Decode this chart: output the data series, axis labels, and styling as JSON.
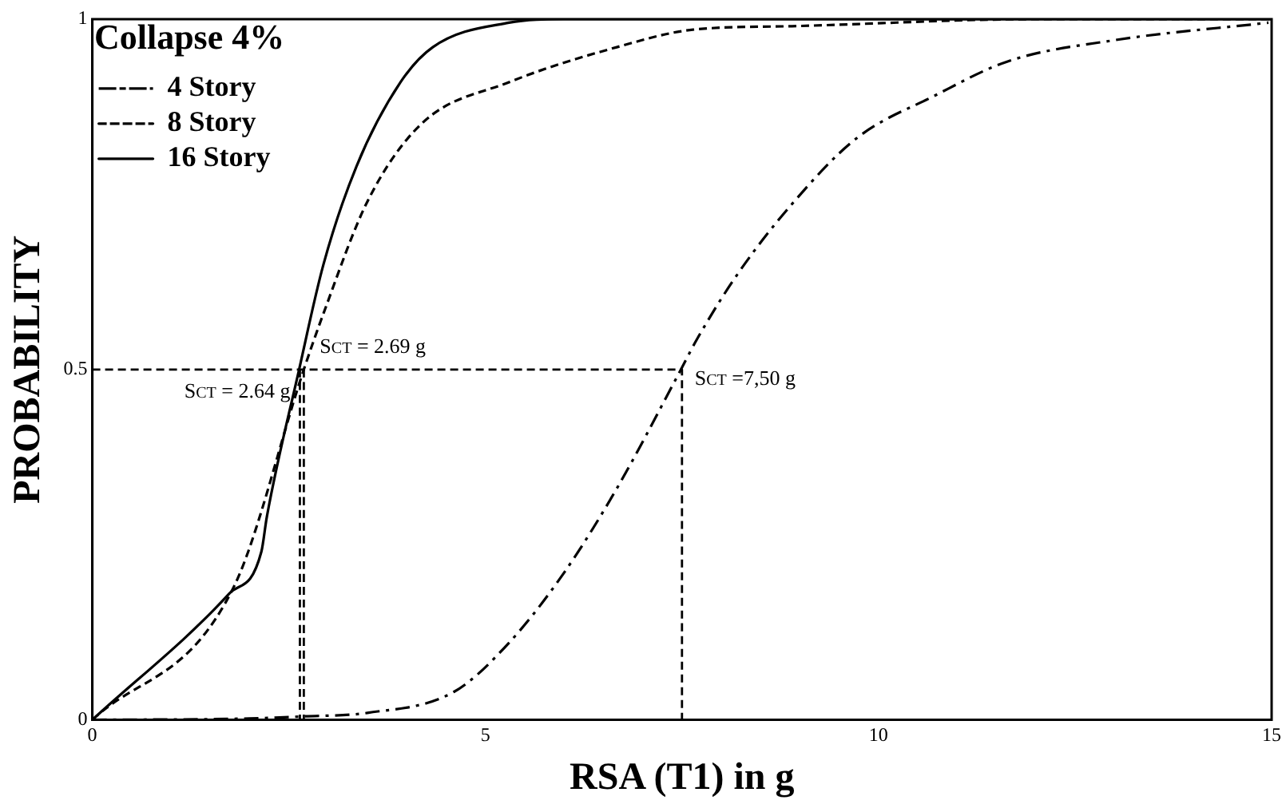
{
  "chart_data": {
    "type": "line",
    "xlabel": "RSA (T1) in g",
    "ylabel": "PROBABILITY",
    "legend_title": "Collapse 4%",
    "legend": "top left",
    "grid": false,
    "marker": "none",
    "xlim": [
      0,
      15
    ],
    "xticks": [
      0,
      5,
      10,
      15
    ],
    "ylim": [
      0,
      1
    ],
    "yticks": [
      0,
      0.5,
      1
    ],
    "series": [
      {
        "name": "4 Story",
        "color": "#000000",
        "line_style": "dashdot",
        "x": [
          0,
          2,
          2.7,
          3.5,
          4.6,
          5.3,
          6.0,
          6.67,
          7.44,
          7.7,
          8.2,
          8.89,
          9.72,
          10.7,
          11.65,
          13.0,
          14.96
        ],
        "values": [
          0,
          0.002,
          0.005,
          0.01,
          0.04,
          0.11,
          0.21,
          0.33,
          0.49,
          0.545,
          0.635,
          0.735,
          0.83,
          0.89,
          0.94,
          0.97,
          0.995
        ]
      },
      {
        "name": "8 Story",
        "color": "#000000",
        "line_style": "dashed",
        "x": [
          0,
          1.8,
          2.69,
          2.94,
          3.5,
          4.18,
          5.3,
          6.67,
          7.64,
          8.9,
          12,
          15
        ],
        "values": [
          0,
          0.19,
          0.5,
          0.58,
          0.74,
          0.85,
          0.91,
          0.96,
          0.985,
          0.99,
          1,
          1
        ]
      },
      {
        "name": "16 Story",
        "color": "#000000",
        "line_style": "solid",
        "x": [
          0,
          1.74,
          2.15,
          2.22,
          2.63,
          2.94,
          3.36,
          3.92,
          4.33,
          5.3,
          6,
          15
        ],
        "values": [
          0,
          0.18,
          0.24,
          0.29,
          0.5,
          0.65,
          0.79,
          0.91,
          0.96,
          0.995,
          1,
          1
        ]
      },
      {
        "color": "#000000",
        "line_style": "dashed",
        "x": [
          0,
          7.5,
          7.5
        ],
        "values": [
          0.5,
          0.5,
          0
        ]
      },
      {
        "color": "#000000",
        "line_style": "dashed",
        "x": [
          2.64,
          2.64
        ],
        "values": [
          0.5,
          0
        ]
      },
      {
        "color": "#000000",
        "line_style": "dashed",
        "x": [
          2.69,
          2.69
        ],
        "values": [
          0.5,
          0
        ]
      }
    ],
    "annotations": [
      {
        "text": "S$_{CT}$ = 2.64 g",
        "x": 2.64,
        "y": 0.5
      },
      {
        "text": "S$_{CT}$ = 2.69 g",
        "x": 2.69,
        "y": 0.5
      },
      {
        "text": "S$_{CT}$ =7,50 g",
        "x": 7.5,
        "y": 0.5
      }
    ]
  }
}
